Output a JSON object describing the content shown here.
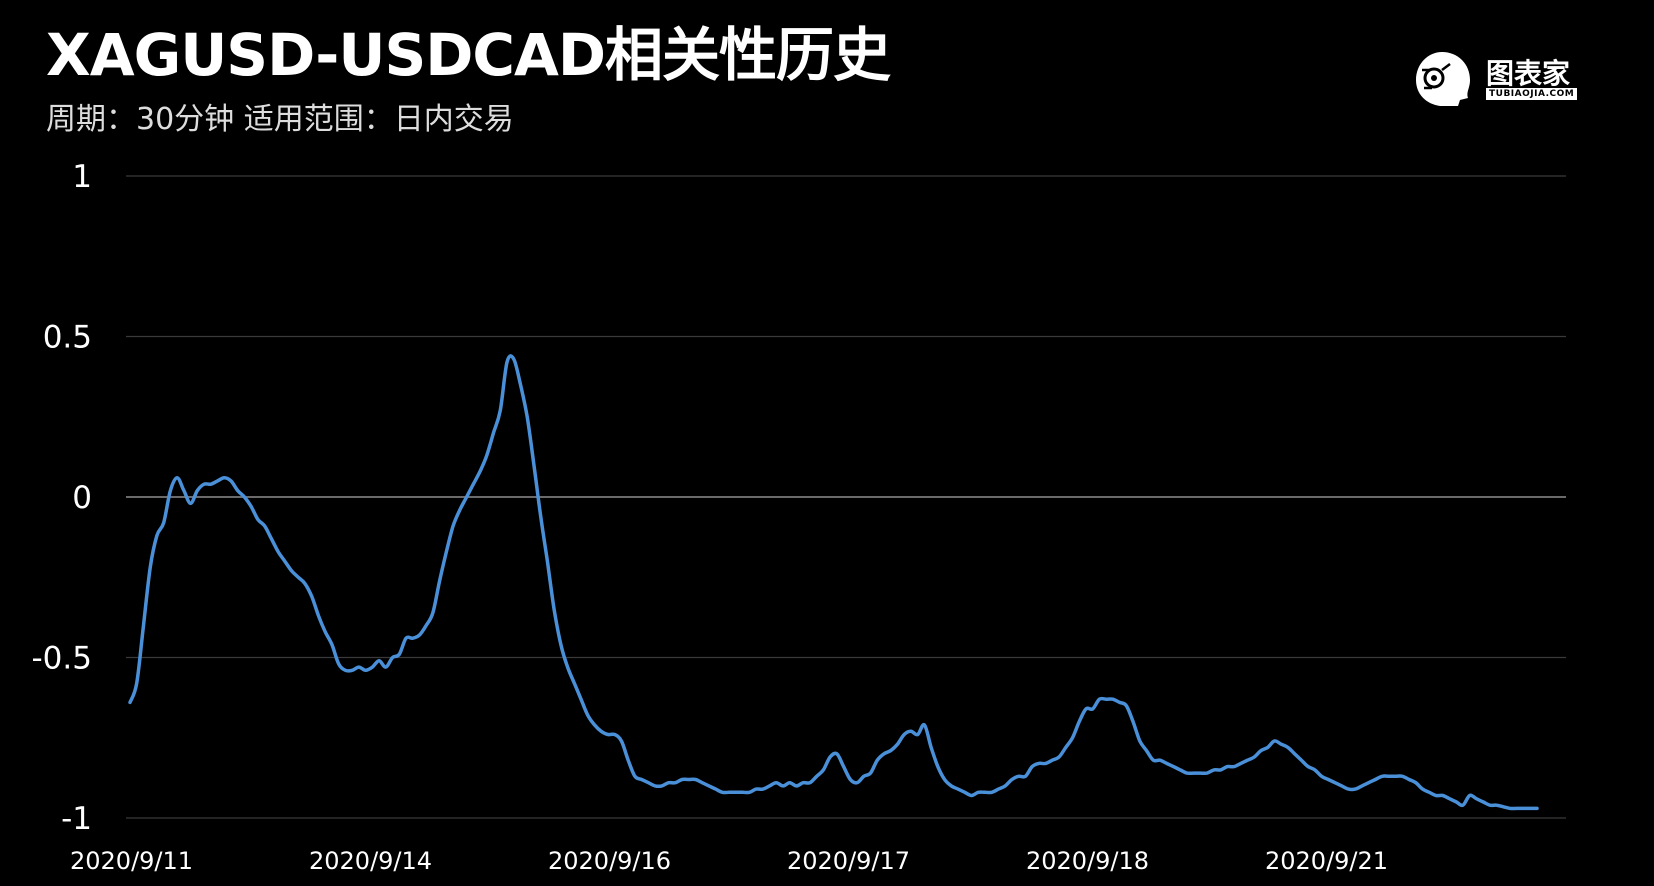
{
  "header": {
    "title": "XAGUSD-USDCAD相关性历史",
    "subtitle": "周期：30分钟  适用范围：日内交易"
  },
  "logo": {
    "name": "图表家",
    "url_text": "TUBIAOJIA.COM",
    "icon": "robot-head-icon"
  },
  "colors": {
    "background": "#000000",
    "line": "#4a90d9",
    "grid": "#3a3a3a",
    "zero_line": "#6a6a6a"
  },
  "chart_data": {
    "type": "line",
    "title": "XAGUSD-USDCAD相关性历史",
    "xlabel": "",
    "ylabel": "",
    "ylim": [
      -1,
      1
    ],
    "y_ticks": [
      1,
      0.5,
      0,
      -0.5,
      -1
    ],
    "y_tick_labels": [
      "1",
      "0.5",
      "0",
      "-0.5",
      "-1"
    ],
    "x_tick_labels": [
      "2020/9/11",
      "2020/9/14",
      "2020/9/16",
      "2020/9/17",
      "2020/9/18",
      "2020/9/21"
    ],
    "grid": true,
    "series": [
      {
        "values": [
          -0.64,
          -0.58,
          -0.4,
          -0.22,
          -0.12,
          -0.08,
          0.02,
          0.06,
          0.02,
          -0.02,
          0.02,
          0.04,
          0.04,
          0.05,
          0.06,
          0.05,
          0.02,
          0.0,
          -0.03,
          -0.07,
          -0.09,
          -0.13,
          -0.17,
          -0.2,
          -0.23,
          -0.25,
          -0.27,
          -0.31,
          -0.37,
          -0.42,
          -0.46,
          -0.52,
          -0.54,
          -0.54,
          -0.53,
          -0.54,
          -0.53,
          -0.51,
          -0.53,
          -0.5,
          -0.49,
          -0.44,
          -0.44,
          -0.43,
          -0.4,
          -0.36,
          -0.26,
          -0.17,
          -0.09,
          -0.04,
          0.0,
          0.04,
          0.08,
          0.13,
          0.2,
          0.27,
          0.42,
          0.43,
          0.35,
          0.25,
          0.1,
          -0.06,
          -0.2,
          -0.35,
          -0.46,
          -0.53,
          -0.58,
          -0.63,
          -0.68,
          -0.71,
          -0.73,
          -0.74,
          -0.74,
          -0.76,
          -0.82,
          -0.87,
          -0.88,
          -0.89,
          -0.9,
          -0.9,
          -0.89,
          -0.89,
          -0.88,
          -0.88,
          -0.88,
          -0.89,
          -0.9,
          -0.91,
          -0.92,
          -0.92,
          -0.92,
          -0.92,
          -0.92,
          -0.91,
          -0.91,
          -0.9,
          -0.89,
          -0.9,
          -0.89,
          -0.9,
          -0.89,
          -0.89,
          -0.87,
          -0.85,
          -0.81,
          -0.8,
          -0.84,
          -0.88,
          -0.89,
          -0.87,
          -0.86,
          -0.82,
          -0.8,
          -0.79,
          -0.77,
          -0.74,
          -0.73,
          -0.74,
          -0.71,
          -0.78,
          -0.84,
          -0.88,
          -0.9,
          -0.91,
          -0.92,
          -0.93,
          -0.92,
          -0.92,
          -0.92,
          -0.91,
          -0.9,
          -0.88,
          -0.87,
          -0.87,
          -0.84,
          -0.83,
          -0.83,
          -0.82,
          -0.81,
          -0.78,
          -0.75,
          -0.7,
          -0.66,
          -0.66,
          -0.63,
          -0.63,
          -0.63,
          -0.64,
          -0.65,
          -0.7,
          -0.76,
          -0.79,
          -0.82,
          -0.82,
          -0.83,
          -0.84,
          -0.85,
          -0.86,
          -0.86,
          -0.86,
          -0.86,
          -0.85,
          -0.85,
          -0.84,
          -0.84,
          -0.83,
          -0.82,
          -0.81,
          -0.79,
          -0.78,
          -0.76,
          -0.77,
          -0.78,
          -0.8,
          -0.82,
          -0.84,
          -0.85,
          -0.87,
          -0.88,
          -0.89,
          -0.9,
          -0.91,
          -0.91,
          -0.9,
          -0.89,
          -0.88,
          -0.87,
          -0.87,
          -0.87,
          -0.87,
          -0.88,
          -0.89,
          -0.91,
          -0.92,
          -0.93,
          -0.93,
          -0.94,
          -0.95,
          -0.96,
          -0.93,
          -0.94,
          -0.95,
          -0.96,
          -0.96,
          -0.965,
          -0.97,
          -0.97,
          -0.97,
          -0.97,
          -0.97
        ]
      }
    ]
  }
}
